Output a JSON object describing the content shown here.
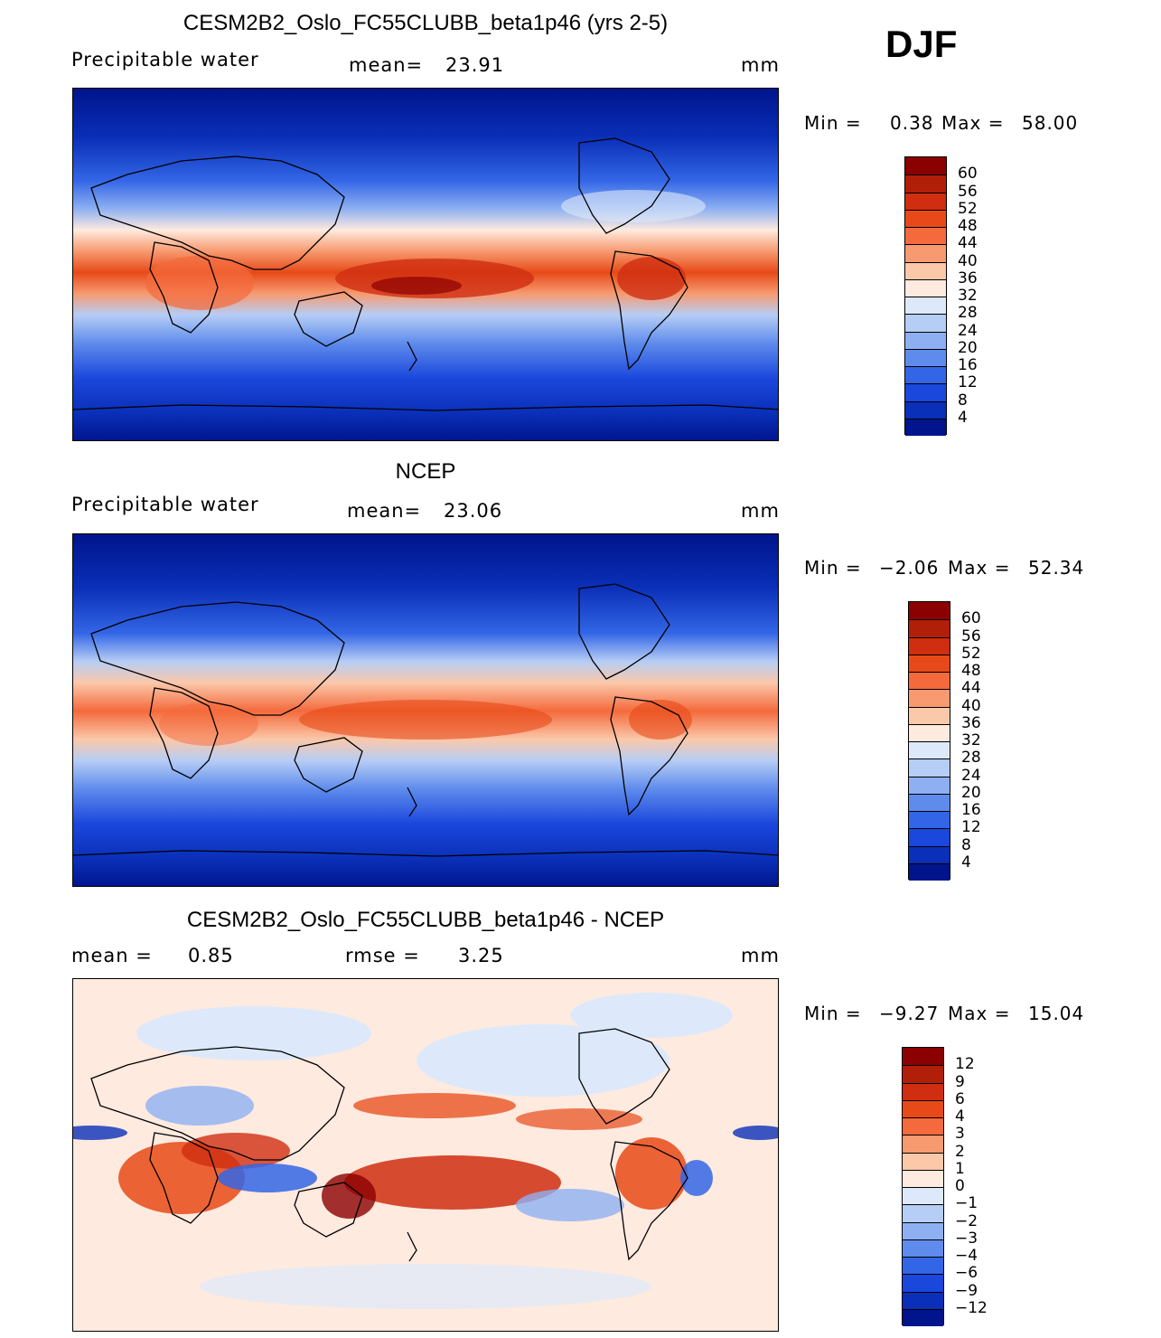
{
  "season": "DJF",
  "panels": [
    {
      "id": "model",
      "title": "CESM2B2_Oslo_FC55CLUBB_beta1p46 (yrs 2-5)",
      "variable": "Precipitable water",
      "stat_label": "mean=",
      "stat_value": "23.91",
      "units": "mm",
      "min_label": "Min =",
      "min_value": "0.38",
      "max_label": "Max =",
      "max_value": "58.00",
      "levels": [
        "60",
        "56",
        "52",
        "48",
        "44",
        "40",
        "36",
        "32",
        "28",
        "24",
        "20",
        "16",
        "12",
        "8",
        "4"
      ],
      "colors": [
        "#8b0000",
        "#b11f08",
        "#cf2e10",
        "#e74a18",
        "#f46a3c",
        "#f79a70",
        "#fbc8aa",
        "#feeadf",
        "#dde9fa",
        "#b6cdf5",
        "#8eb0f2",
        "#5f8cec",
        "#3366e6",
        "#1a47dc",
        "#0a2fb8",
        "#00148c"
      ]
    },
    {
      "id": "obs",
      "title": "NCEP",
      "variable": "Precipitable water",
      "stat_label": "mean=",
      "stat_value": "23.06",
      "units": "mm",
      "min_label": "Min =",
      "min_value": "−2.06",
      "max_label": "Max =",
      "max_value": "52.34",
      "levels": [
        "60",
        "56",
        "52",
        "48",
        "44",
        "40",
        "36",
        "32",
        "28",
        "24",
        "20",
        "16",
        "12",
        "8",
        "4"
      ],
      "colors": [
        "#8b0000",
        "#b11f08",
        "#cf2e10",
        "#e74a18",
        "#f46a3c",
        "#f79a70",
        "#fbc8aa",
        "#feeadf",
        "#dde9fa",
        "#b6cdf5",
        "#8eb0f2",
        "#5f8cec",
        "#3366e6",
        "#1a47dc",
        "#0a2fb8",
        "#00148c"
      ]
    },
    {
      "id": "diff",
      "title": "CESM2B2_Oslo_FC55CLUBB_beta1p46 - NCEP",
      "variable": "mean =",
      "stat_label": "rmse =",
      "stat_value": "3.25",
      "mean_value": "0.85",
      "units": "mm",
      "min_label": "Min =",
      "min_value": "−9.27",
      "max_label": "Max =",
      "max_value": "15.04",
      "levels": [
        "12",
        "9",
        "6",
        "4",
        "3",
        "2",
        "1",
        "0",
        "−1",
        "−2",
        "−3",
        "−4",
        "−6",
        "−9",
        "−12"
      ],
      "colors": [
        "#8b0000",
        "#b11f08",
        "#cf2e10",
        "#e74a18",
        "#f46a3c",
        "#f79a70",
        "#fbc8aa",
        "#feeadf",
        "#dde9fa",
        "#b6cdf5",
        "#8eb0f2",
        "#5f8cec",
        "#3366e6",
        "#1a47dc",
        "#0a2fb8",
        "#00148c"
      ]
    }
  ]
}
